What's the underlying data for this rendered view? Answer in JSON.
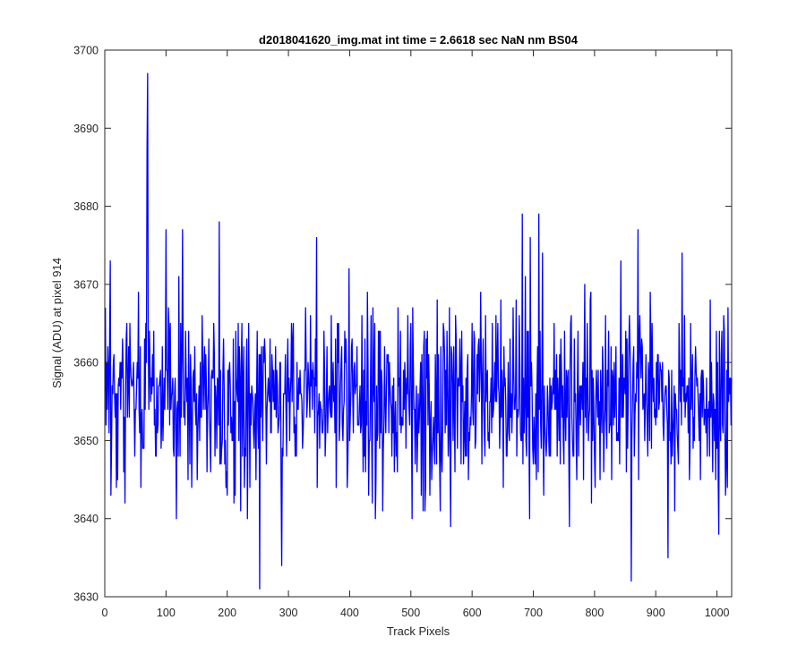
{
  "chart_data": {
    "type": "line",
    "title": "d2018041620_img.mat int time = 2.6618 sec  NaN nm BS04",
    "xlabel": "Track Pixels",
    "ylabel": "Signal (ADU) at pixel 914",
    "xlim": [
      0,
      1024
    ],
    "ylim": [
      3630,
      3700
    ],
    "x_ticks": [
      0,
      100,
      200,
      300,
      400,
      500,
      600,
      700,
      800,
      900,
      1000
    ],
    "y_ticks": [
      3630,
      3640,
      3650,
      3660,
      3670,
      3680,
      3690,
      3700
    ],
    "grid": false,
    "legend": "none",
    "series": [
      {
        "color": "#0000ff",
        "x_start": 1,
        "x_step": 1,
        "noise_model": {
          "mean": 3655.5,
          "std": 6.2,
          "min": 3631,
          "max": 3697
        },
        "notable_points": [
          {
            "x": 70,
            "y": 3697
          },
          {
            "x": 69,
            "y": 3687
          },
          {
            "x": 9,
            "y": 3673
          },
          {
            "x": 100,
            "y": 3677
          },
          {
            "x": 127,
            "y": 3677
          },
          {
            "x": 187,
            "y": 3678
          },
          {
            "x": 253,
            "y": 3631
          },
          {
            "x": 289,
            "y": 3634
          },
          {
            "x": 346,
            "y": 3676
          },
          {
            "x": 682,
            "y": 3679
          },
          {
            "x": 695,
            "y": 3676
          },
          {
            "x": 709,
            "y": 3679
          },
          {
            "x": 860,
            "y": 3632
          },
          {
            "x": 871,
            "y": 3677
          },
          {
            "x": 920,
            "y": 3635
          },
          {
            "x": 1003,
            "y": 3638
          }
        ]
      }
    ]
  }
}
